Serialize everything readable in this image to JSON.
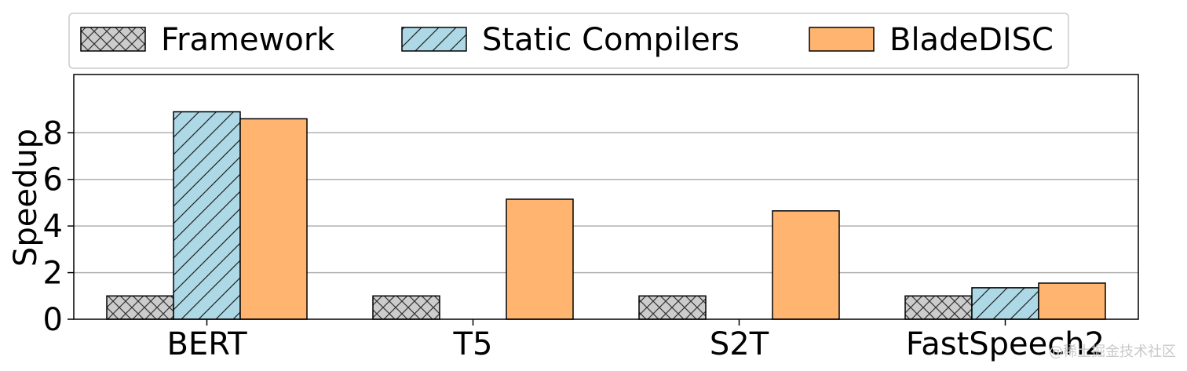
{
  "chart_data": {
    "type": "bar",
    "categories": [
      "BERT",
      "T5",
      "S2T",
      "FastSpeech2"
    ],
    "series": [
      {
        "name": "Framework",
        "values": [
          1.0,
          1.0,
          1.0,
          1.0
        ],
        "color": "#cccccc",
        "hatch": "crosshatch"
      },
      {
        "name": "Static Compilers",
        "values": [
          8.9,
          0,
          0,
          1.35
        ],
        "color": "#add8e6",
        "hatch": "diagonal"
      },
      {
        "name": "BladeDISC",
        "values": [
          8.6,
          5.15,
          4.65,
          1.55
        ],
        "color": "#ffb570",
        "hatch": "none"
      }
    ],
    "title": "",
    "xlabel": "",
    "ylabel": "Speedup",
    "ylim": [
      0,
      10.5
    ],
    "yticks": [
      0,
      2,
      4,
      6,
      8
    ],
    "grid": "y",
    "legend": "top-center"
  },
  "watermark": "@稀土掘金技术社区"
}
